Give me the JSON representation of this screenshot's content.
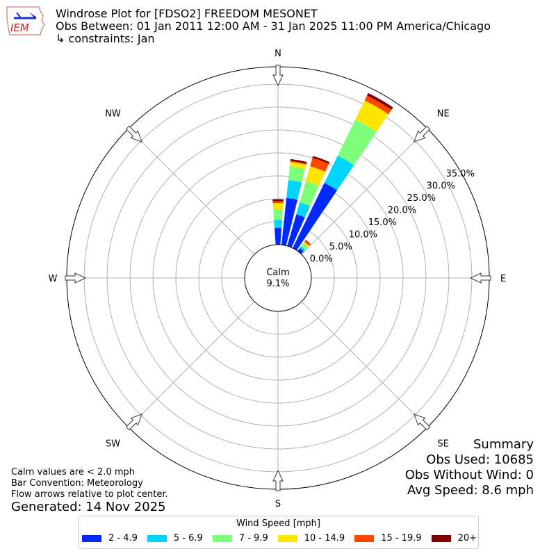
{
  "logo": {
    "text": "IEM"
  },
  "title": {
    "line1": "Windrose Plot for [FDSO2] FREEDOM MESONET",
    "line2": "Obs Between: 01 Jan 2011 12:00 AM - 31 Jan 2025 11:00 PM America/Chicago",
    "line3": "↳ constraints: Jan"
  },
  "notes": {
    "calm": "Calm values are < 2.0 mph",
    "convention": "Bar Convention: Meteorology",
    "flow": "Flow arrows relative to plot center.",
    "generated": "Generated: 14 Nov 2025"
  },
  "summary": {
    "heading": "Summary",
    "obs_used": "Obs Used: 10685",
    "obs_without_wind": "Obs Without Wind: 0",
    "avg_speed": "Avg Speed: 8.6 mph"
  },
  "chart_data": {
    "type": "windrose",
    "calm_label": "Calm",
    "calm_value": "9.1%",
    "direction_labels": [
      "N",
      "NE",
      "E",
      "SE",
      "S",
      "SW",
      "W",
      "NW"
    ],
    "radial_ticks": [
      "0.0%",
      "5.0%",
      "10.0%",
      "15.0%",
      "20.0%",
      "25.0%",
      "30.0%",
      "35.0%"
    ],
    "radial_max": 38.8,
    "grid": true,
    "legend_title": "Wind Speed [mph]",
    "legend_placement": "bottom",
    "bins": [
      {
        "name": "2 - 4.9",
        "color": "#0028ff"
      },
      {
        "name": "5 - 6.9",
        "color": "#00d4ff"
      },
      {
        "name": "7 - 9.9",
        "color": "#7dff7a"
      },
      {
        "name": "10 - 14.9",
        "color": "#ffe600"
      },
      {
        "name": "15 - 19.9",
        "color": "#ff4700"
      },
      {
        "name": "20+",
        "color": "#800000"
      }
    ],
    "directions_deg": [
      0,
      10,
      20,
      30,
      40
    ],
    "values_percent": [
      [
        3.7,
        1.7,
        2.3,
        1.4,
        0.4,
        0.4
      ],
      [
        10.3,
        3.9,
        3.0,
        1.0,
        0.2,
        0.4
      ],
      [
        7.2,
        2.7,
        4.8,
        3.4,
        1.9,
        0.4
      ],
      [
        15.8,
        6.6,
        8.8,
        4.6,
        1.2,
        0.6
      ],
      [
        0.8,
        0.5,
        0.8,
        0.4,
        0.4,
        0.1
      ]
    ]
  }
}
